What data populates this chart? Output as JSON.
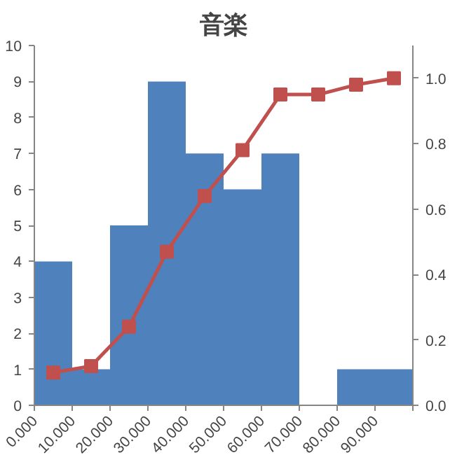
{
  "chart_data": {
    "type": "histogram",
    "title": "音楽",
    "bins": [
      0,
      10,
      20,
      30,
      40,
      50,
      60,
      70,
      80,
      90,
      100
    ],
    "xlim": [
      0,
      100
    ],
    "xticks": [
      {
        "value": 0,
        "label": "0.000"
      },
      {
        "value": 10,
        "label": "10.000"
      },
      {
        "value": 20,
        "label": "20.000"
      },
      {
        "value": 30,
        "label": "30.000"
      },
      {
        "value": 40,
        "label": "40.000"
      },
      {
        "value": 50,
        "label": "50.000"
      },
      {
        "value": 60,
        "label": "60.000"
      },
      {
        "value": 70,
        "label": "70.000"
      },
      {
        "value": 80,
        "label": "80.000"
      },
      {
        "value": 90,
        "label": "90.000"
      },
      {
        "value": 100,
        "label": null
      }
    ],
    "ylim": [
      0,
      10
    ],
    "yticks": [
      0,
      1,
      2,
      3,
      4,
      5,
      6,
      7,
      8,
      9,
      10
    ],
    "y2lim": [
      0,
      1.1
    ],
    "y2ticks": [
      {
        "value": 0,
        "label": "0.0"
      },
      {
        "value": 0.2,
        "label": "0.2"
      },
      {
        "value": 0.4,
        "label": "0.4"
      },
      {
        "value": 0.6,
        "label": "0.6"
      },
      {
        "value": 0.8,
        "label": "0.8"
      },
      {
        "value": 1.0,
        "label": "1.0"
      }
    ],
    "grid": false,
    "series": [
      {
        "color": "#4f81bd",
        "values": [
          4,
          1,
          5,
          9,
          7,
          6,
          7,
          0,
          1,
          1
        ]
      },
      {
        "type": "line",
        "axis": "y2",
        "color": "#c0504d",
        "marker": "square",
        "line_style": "solid",
        "x": [
          5,
          15,
          25,
          35,
          45,
          55,
          65,
          75,
          85,
          95
        ],
        "values": [
          0.1,
          0.12,
          0.24,
          0.47,
          0.64,
          0.78,
          0.95,
          0.95,
          0.98,
          1.0
        ]
      }
    ]
  }
}
